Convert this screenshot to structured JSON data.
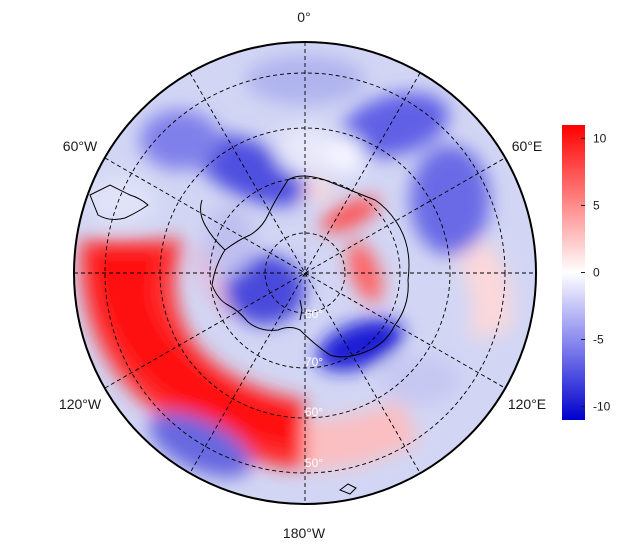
{
  "map": {
    "projection": "south-polar-stereographic",
    "longitude_labels": [
      {
        "key": "0",
        "text": "0°"
      },
      {
        "key": "60E",
        "text": "60°E"
      },
      {
        "key": "120E",
        "text": "120°E"
      },
      {
        "key": "180",
        "text": "180°W"
      },
      {
        "key": "120W",
        "text": "120°W"
      },
      {
        "key": "60W",
        "text": "60°W"
      }
    ],
    "latitude_labels": [
      {
        "key": "80",
        "text": "80°"
      },
      {
        "key": "70",
        "text": "70°"
      },
      {
        "key": "60",
        "text": "60°"
      },
      {
        "key": "50",
        "text": "50°"
      }
    ],
    "gridlines": {
      "latitudes": [
        80,
        70,
        60,
        50
      ],
      "longitudes": [
        0,
        30,
        60,
        90,
        120,
        150,
        180,
        210,
        240,
        270,
        300,
        330
      ],
      "style": "dashed"
    },
    "anomaly_features": [
      {
        "region": "Pacific sector 90W-180",
        "value": 9
      },
      {
        "region": "Amundsen Sea",
        "value": 6
      },
      {
        "region": "East Antarctic plateau 30E-60E",
        "value": 6
      },
      {
        "region": "Ross Sea 150E-170E",
        "value": -9
      },
      {
        "region": "Indian Ocean 60E-90E",
        "value": -5
      },
      {
        "region": "Atlantic sector 30W-30E",
        "value": -5
      },
      {
        "region": "Weddell Sea",
        "value": -6
      }
    ]
  },
  "colorbar": {
    "ticks": [
      {
        "value": 10,
        "label": "10"
      },
      {
        "value": 5,
        "label": "5"
      },
      {
        "value": 0,
        "label": "0"
      },
      {
        "value": -5,
        "label": "-5"
      },
      {
        "value": -10,
        "label": "-10"
      }
    ],
    "range": [
      -11,
      11
    ],
    "colors": {
      "low": "#0000cc",
      "mid": "#ffffff",
      "high": "#ff0000"
    }
  }
}
